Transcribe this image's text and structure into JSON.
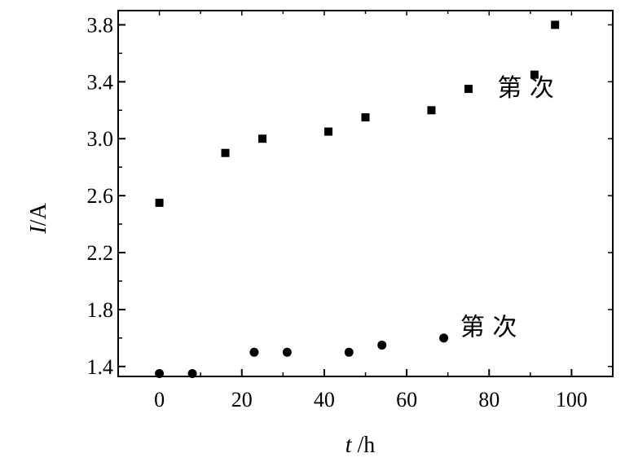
{
  "chart_data": {
    "type": "scatter",
    "xlabel": {
      "italic": "t",
      "rest": " /h"
    },
    "ylabel": {
      "italic": "I",
      "rest": "/A"
    },
    "xlim": [
      -10,
      110
    ],
    "ylim": [
      1.33,
      3.9
    ],
    "xticks": [
      0,
      20,
      40,
      60,
      80,
      100
    ],
    "yticks": [
      1.4,
      1.8,
      2.2,
      2.6,
      3.0,
      3.4,
      3.8
    ],
    "ytick_labels": [
      "1.4",
      "1.8",
      "2.2",
      "2.6",
      "3.0",
      "3.4",
      "3.8"
    ],
    "series": [
      {
        "marker": "square",
        "x": [
          0,
          16,
          25,
          41,
          50,
          66,
          75,
          91,
          96
        ],
        "y": [
          2.55,
          2.9,
          3.0,
          3.05,
          3.15,
          3.2,
          3.35,
          3.45,
          3.8
        ]
      },
      {
        "marker": "circle",
        "x": [
          0,
          8,
          23,
          31,
          46,
          54,
          69
        ],
        "y": [
          1.35,
          1.35,
          1.5,
          1.5,
          1.5,
          1.55,
          1.6
        ]
      }
    ],
    "annotations": [
      {
        "text": "第  次",
        "x": 82,
        "y": 3.3
      },
      {
        "text": "第  次",
        "x": 73,
        "y": 1.62
      }
    ],
    "color": "#000000"
  }
}
